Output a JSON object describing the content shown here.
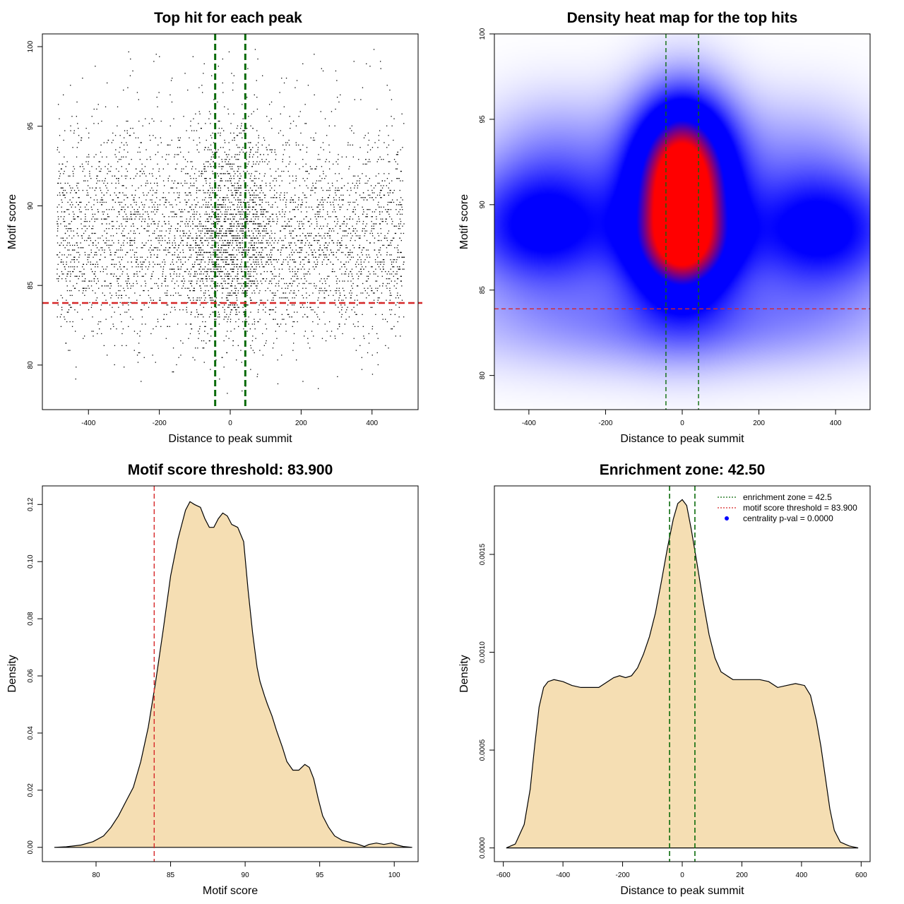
{
  "chart_data": [
    {
      "type": "scatter",
      "title": "Top hit for each peak",
      "xlabel": "Distance to peak summit",
      "ylabel": "Motif score",
      "xlim": [
        -530,
        530
      ],
      "ylim": [
        77.2,
        100.8
      ],
      "xticks": [
        -400,
        -200,
        0,
        200,
        400
      ],
      "yticks": [
        80,
        85,
        90,
        95,
        100
      ],
      "enrichment_zone": [
        -42.5,
        42.5
      ],
      "threshold": 83.9,
      "point_x_range": [
        -490,
        490
      ],
      "point_density_by_score": [
        {
          "score": 78,
          "relative_density": 0.002
        },
        {
          "score": 80,
          "relative_density": 0.03
        },
        {
          "score": 82,
          "relative_density": 0.15
        },
        {
          "score": 84,
          "relative_density": 0.45
        },
        {
          "score": 85.5,
          "relative_density": 0.8
        },
        {
          "score": 87,
          "relative_density": 1.0
        },
        {
          "score": 89,
          "relative_density": 0.95
        },
        {
          "score": 90.5,
          "relative_density": 0.75
        },
        {
          "score": 92,
          "relative_density": 0.45
        },
        {
          "score": 94,
          "relative_density": 0.25
        },
        {
          "score": 96,
          "relative_density": 0.06
        },
        {
          "score": 100,
          "relative_density": 0.02
        }
      ],
      "colors": {
        "points": "#000000",
        "zone": "#0a6b0a",
        "threshold": "#d62728"
      }
    },
    {
      "type": "heatmap",
      "title": "Density heat map for the top hits",
      "xlabel": "Distance to peak summit",
      "ylabel": "Motif score",
      "xlim": [
        -490,
        490
      ],
      "ylim": [
        78,
        100
      ],
      "xticks": [
        -400,
        -200,
        0,
        200,
        400
      ],
      "yticks": [
        80,
        85,
        90,
        95,
        100
      ],
      "enrichment_zone": [
        -42.5,
        42.5
      ],
      "threshold": 83.9,
      "blobs": [
        {
          "x": 0,
          "y": 90,
          "sx": 95,
          "sy": 3.6,
          "w": 1.0
        },
        {
          "x": 0,
          "y": 87.2,
          "sx": 95,
          "sy": 1.6,
          "w": 0.3
        },
        {
          "x": 0,
          "y": 93.5,
          "sx": 90,
          "sy": 2.6,
          "w": 0.35
        },
        {
          "x": -360,
          "y": 88.7,
          "sx": 160,
          "sy": 2.6,
          "w": 0.5
        },
        {
          "x": 360,
          "y": 88.5,
          "sx": 160,
          "sy": 2.6,
          "w": 0.5
        },
        {
          "x": -320,
          "y": 93.5,
          "sx": 140,
          "sy": 2.4,
          "w": 0.14
        },
        {
          "x": 300,
          "y": 93.5,
          "sx": 150,
          "sy": 2.4,
          "w": 0.12
        },
        {
          "x": 0,
          "y": 83,
          "sx": 400,
          "sy": 2.0,
          "w": 0.22
        }
      ],
      "colors": {
        "low": "#ffffff",
        "mid": "#0000ff",
        "high": "#ff0000",
        "zone": "#0a6b0a",
        "threshold": "#d62728"
      }
    },
    {
      "type": "area",
      "title": "Motif score threshold: 83.900",
      "xlabel": "Motif score",
      "ylabel": "Density",
      "xlim": [
        76.4,
        101.6
      ],
      "ylim": [
        -0.005,
        0.1265
      ],
      "xticks": [
        80,
        85,
        90,
        95,
        100
      ],
      "yticks": [
        0.0,
        0.02,
        0.04,
        0.06,
        0.08,
        0.1,
        0.12
      ],
      "ytick_labels": [
        "0.00",
        "0.02",
        "0.04",
        "0.06",
        "0.08",
        "0.10",
        "0.12"
      ],
      "threshold": 83.9,
      "x": [
        77.2,
        78,
        79,
        79.8,
        80.5,
        81,
        81.5,
        82,
        82.5,
        83,
        83.5,
        84,
        84.5,
        85,
        85.5,
        86,
        86.3,
        86.6,
        87,
        87.3,
        87.6,
        87.9,
        88.2,
        88.5,
        88.8,
        89.1,
        89.5,
        89.9,
        90.2,
        90.5,
        90.8,
        91,
        91.3,
        91.5,
        91.8,
        92.1,
        92.5,
        92.8,
        93.2,
        93.6,
        94,
        94.3,
        94.6,
        94.9,
        95.2,
        95.6,
        96,
        96.5,
        97,
        97.5,
        98,
        98.3,
        98.8,
        99.3,
        99.8,
        100.2,
        100.6,
        101.2
      ],
      "y": [
        0,
        0.0002,
        0.0008,
        0.002,
        0.004,
        0.007,
        0.011,
        0.016,
        0.021,
        0.03,
        0.042,
        0.058,
        0.076,
        0.095,
        0.108,
        0.118,
        0.121,
        0.12,
        0.119,
        0.115,
        0.112,
        0.112,
        0.115,
        0.117,
        0.116,
        0.113,
        0.112,
        0.107,
        0.09,
        0.075,
        0.063,
        0.058,
        0.053,
        0.05,
        0.046,
        0.041,
        0.035,
        0.03,
        0.027,
        0.027,
        0.029,
        0.028,
        0.024,
        0.017,
        0.011,
        0.007,
        0.004,
        0.0025,
        0.0018,
        0.0012,
        0.0003,
        0.001,
        0.0015,
        0.001,
        0.0015,
        0.0008,
        0.0003,
        0
      ]
    },
    {
      "type": "area",
      "title": "Enrichment zone: 42.50",
      "xlabel": "Distance to peak summit",
      "ylabel": "Density",
      "xlim": [
        -630,
        630
      ],
      "ylim": [
        -7e-05,
        0.00185
      ],
      "xticks": [
        -600,
        -400,
        -200,
        0,
        200,
        400,
        600
      ],
      "yticks": [
        0,
        0.0005,
        0.001,
        0.0015
      ],
      "ytick_labels": [
        "0.0000",
        "0.0005",
        "0.0010",
        "0.0015"
      ],
      "enrichment_zone": [
        -42.5,
        42.5
      ],
      "x": [
        -590,
        -560,
        -530,
        -510,
        -495,
        -480,
        -465,
        -450,
        -430,
        -400,
        -370,
        -340,
        -310,
        -280,
        -250,
        -230,
        -210,
        -190,
        -170,
        -150,
        -130,
        -110,
        -90,
        -70,
        -50,
        -30,
        -15,
        0,
        15,
        30,
        50,
        70,
        90,
        110,
        130,
        150,
        170,
        200,
        230,
        260,
        290,
        320,
        350,
        380,
        410,
        430,
        450,
        465,
        480,
        495,
        510,
        530,
        560,
        590
      ],
      "y": [
        0,
        2e-05,
        0.00012,
        0.0003,
        0.00052,
        0.00072,
        0.00082,
        0.00085,
        0.00086,
        0.00085,
        0.00083,
        0.00082,
        0.00082,
        0.00082,
        0.00085,
        0.00087,
        0.00088,
        0.00087,
        0.00088,
        0.00092,
        0.00099,
        0.00108,
        0.0012,
        0.00136,
        0.00153,
        0.00168,
        0.00176,
        0.00178,
        0.00175,
        0.00163,
        0.00145,
        0.00126,
        0.00109,
        0.00097,
        0.0009,
        0.00088,
        0.00086,
        0.00086,
        0.00086,
        0.00086,
        0.00085,
        0.00082,
        0.00083,
        0.00084,
        0.00083,
        0.00078,
        0.00065,
        0.00052,
        0.00036,
        0.0002,
        9e-05,
        3e-05,
        1e-05,
        0
      ],
      "legend": [
        {
          "label": "enrichment zone = 42.5",
          "color": "#0a6b0a",
          "kind": "line"
        },
        {
          "label": "motif score threshold = 83.900",
          "color": "#d62728",
          "kind": "line"
        },
        {
          "label": "centrality p-val = 0.0000",
          "color": "#0000ff",
          "kind": "point"
        }
      ],
      "legend_position": "top-right"
    }
  ],
  "colors": {
    "fill": "#f5deb3",
    "zone": "#0a6b0a",
    "threshold": "#d62728"
  }
}
